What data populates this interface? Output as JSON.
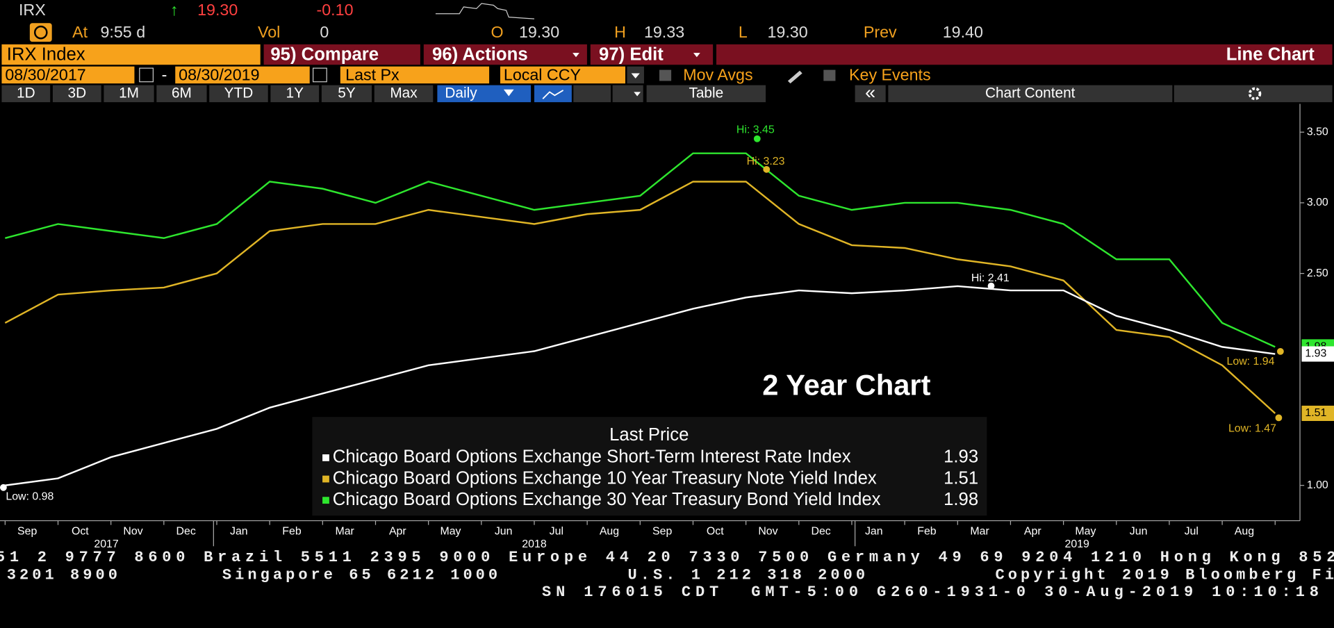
{
  "header": {
    "ticker": "IRX",
    "arrow": "↑",
    "last": "19.30",
    "change": "-0.10",
    "at": "At",
    "time": "9:55 d",
    "vol_label": "Vol",
    "vol": "0",
    "open_label": "O",
    "open": "19.30",
    "high_label": "H",
    "high": "19.33",
    "low_label": "L",
    "low": "19.30",
    "prev_label": "Prev",
    "prev": "19.40"
  },
  "menu": {
    "security": "IRX Index",
    "compare": "95) Compare",
    "actions": "96) Actions",
    "edit": "97) Edit",
    "view": "Line Chart"
  },
  "controls": {
    "start_date": "08/30/2017",
    "dash": "-",
    "end_date": "08/30/2019",
    "field": "Last Px",
    "currency": "Local CCY",
    "mov_avgs": "Mov Avgs",
    "key_events": "Key Events"
  },
  "periods": [
    "1D",
    "3D",
    "1M",
    "6M",
    "YTD",
    "1Y",
    "5Y",
    "Max"
  ],
  "toolbar": {
    "frequency": "Daily",
    "table": "Table",
    "collapse": "«",
    "chart_content": "Chart Content"
  },
  "chart_data": {
    "type": "line",
    "title": "2 Year Chart",
    "legend_title": "Last Price",
    "categories": [
      "Sep",
      "Oct",
      "Nov",
      "Dec",
      "Jan",
      "Feb",
      "Mar",
      "Apr",
      "May",
      "Jun",
      "Jul",
      "Aug",
      "Sep",
      "Oct",
      "Nov",
      "Dec",
      "Jan",
      "Feb",
      "Mar",
      "Apr",
      "May",
      "Jun",
      "Jul",
      "Aug",
      null
    ],
    "years": [
      "2017",
      "2018",
      "2019"
    ],
    "series": [
      {
        "name": "Chicago Board Options Exchange Short-Term Interest Rate Index",
        "color": "#ffffff",
        "values": [
          1.0,
          1.05,
          1.2,
          1.3,
          1.4,
          1.55,
          1.65,
          1.75,
          1.85,
          1.9,
          1.95,
          2.05,
          2.15,
          2.25,
          2.33,
          2.38,
          2.36,
          2.38,
          2.41,
          2.38,
          2.38,
          2.2,
          2.1,
          1.98,
          1.93
        ]
      },
      {
        "name": "Chicago Board Options Exchange 10 Year Treasury Note Yield Index",
        "color": "#e0b526",
        "values": [
          2.15,
          2.35,
          2.38,
          2.4,
          2.5,
          2.8,
          2.85,
          2.85,
          2.95,
          2.9,
          2.85,
          2.92,
          2.95,
          3.15,
          3.15,
          2.85,
          2.7,
          2.68,
          2.6,
          2.55,
          2.45,
          2.1,
          2.05,
          1.85,
          1.51
        ]
      },
      {
        "name": "Chicago Board Options Exchange 30 Year Treasury Bond Yield Index",
        "color": "#2ee62e",
        "values": [
          2.75,
          2.85,
          2.8,
          2.75,
          2.85,
          3.15,
          3.1,
          3.0,
          3.15,
          3.05,
          2.95,
          3.0,
          3.05,
          3.35,
          3.35,
          3.05,
          2.95,
          3.0,
          3.0,
          2.95,
          2.85,
          2.6,
          2.6,
          2.15,
          1.98
        ]
      }
    ],
    "ylim": [
      0.75,
      3.7
    ],
    "yticks": [
      {
        "value": 1,
        "label": "1.00"
      },
      {
        "value": 2.5,
        "label": "2.50"
      },
      {
        "value": 3,
        "label": "3.00"
      },
      {
        "value": 3.5,
        "label": "3.50"
      }
    ],
    "annotations": [
      "Hi: 3.45",
      "Hi: 3.23",
      "Hi: 2.41",
      "Low: 0.98",
      "Low: 1.94",
      "Low: 1.47"
    ]
  },
  "footer": [
    "51 2 9777 8600 Brazil 5511 2395 9000 Europe 44 20 7330 7500 Germany 49 69 9204 1210 Hong Kong 852",
    "3201 8900        Singapore 65 6212 1000          U.S. 1 212 318 2000          Copyright 2019 Bloomberg Fi",
    "SN 176015 CDT  GMT-5:00 G260-1931-0 30-Aug-2019 10:10:18"
  ]
}
